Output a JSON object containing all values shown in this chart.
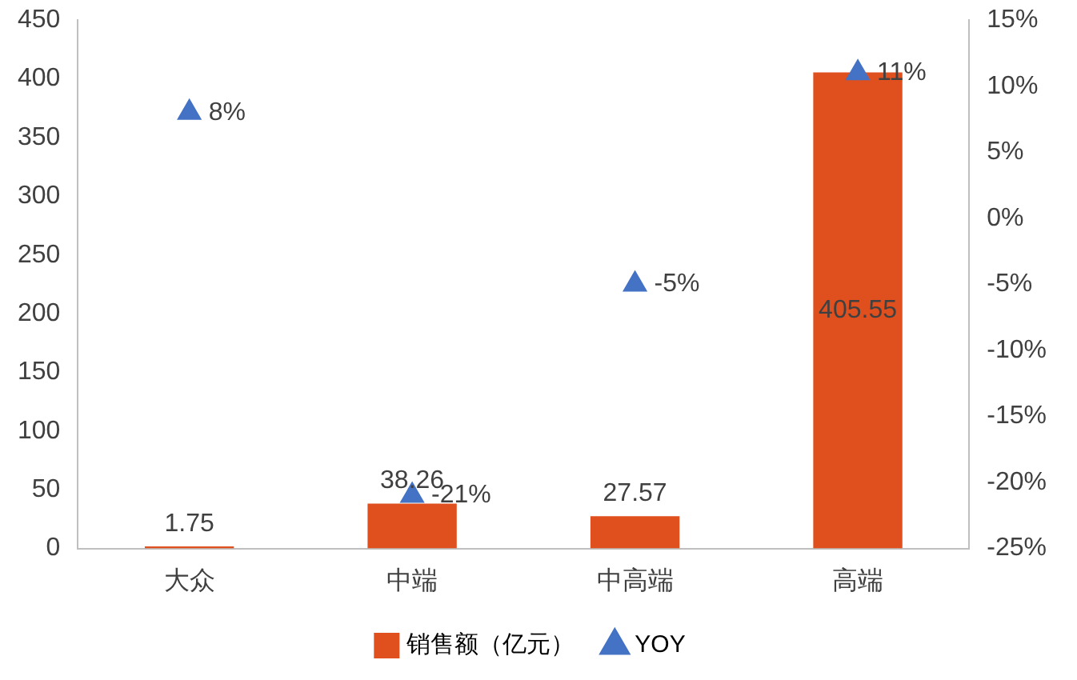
{
  "chart_data": {
    "type": "bar",
    "categories": [
      "大众",
      "中端",
      "中高端",
      "高端"
    ],
    "series": [
      {
        "name": "销售额（亿元）",
        "color": "#e0501e",
        "values": [
          1.75,
          38.26,
          27.57,
          405.55
        ],
        "value_labels": [
          "1.75",
          "38.26",
          "27.57",
          "405.55"
        ]
      },
      {
        "name": "YOY",
        "type": "scatter",
        "axis": "y2",
        "color": "#4472c4",
        "x": [
          "大众",
          "中端",
          "中高端",
          "高端"
        ],
        "values": [
          8,
          -21,
          -5,
          11
        ],
        "value_labels": [
          "8%",
          "-21%",
          "-5%",
          "11%"
        ]
      }
    ],
    "ylim": [
      0,
      450
    ],
    "yticks": [
      0,
      50,
      100,
      150,
      200,
      250,
      300,
      350,
      400,
      450
    ],
    "y2lim": [
      -25,
      15
    ],
    "y2ticks": [
      {
        "value": -25,
        "label": "-25%"
      },
      {
        "value": -20,
        "label": "-20%"
      },
      {
        "value": -15,
        "label": "-15%"
      },
      {
        "value": -10,
        "label": "-10%"
      },
      {
        "value": -5,
        "label": "-5%"
      },
      {
        "value": 0,
        "label": "0%"
      },
      {
        "value": 5,
        "label": "5%"
      },
      {
        "value": 10,
        "label": "10%"
      },
      {
        "value": 15,
        "label": "15%"
      }
    ],
    "legend": "bottom",
    "grid": false,
    "marker": "triangle"
  }
}
